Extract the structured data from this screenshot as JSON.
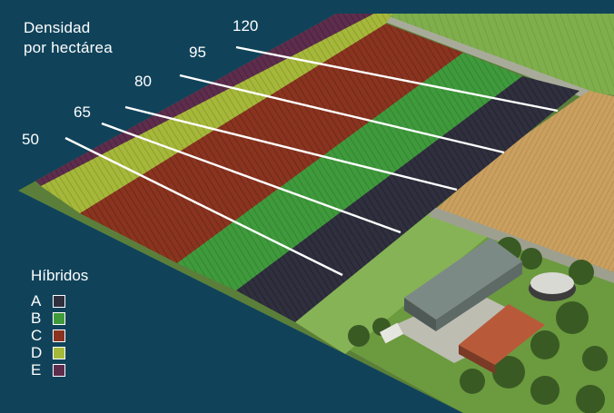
{
  "title": {
    "line1": "Densidad",
    "line2": "por hectárea"
  },
  "densities": [
    "50",
    "65",
    "80",
    "95",
    "120"
  ],
  "legend": {
    "title": "Híbridos",
    "items": [
      {
        "letter": "A",
        "color": "#2f2f3e"
      },
      {
        "letter": "B",
        "color": "#3f9a3c"
      },
      {
        "letter": "C",
        "color": "#8a3420"
      },
      {
        "letter": "D",
        "color": "#a6b83a"
      },
      {
        "letter": "E",
        "color": "#5e2d4c"
      }
    ]
  },
  "colors": {
    "background": "#10435a",
    "field_a": "#2f2f3e",
    "field_b": "#3f9a3c",
    "field_c": "#8a3420",
    "field_d": "#a6b83a",
    "field_e": "#5e2d4c"
  }
}
